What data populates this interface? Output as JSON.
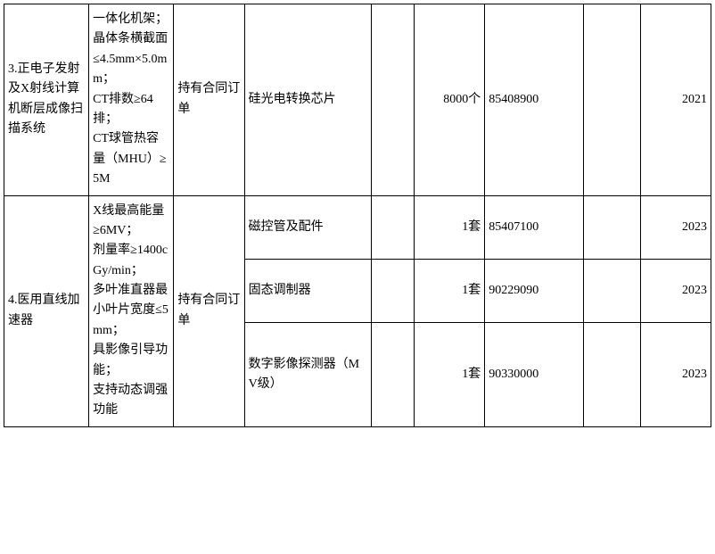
{
  "rows": [
    {
      "name": "3.正电子发射及X射线计算机断层成像扫描系统",
      "spec": "一体化机架；\n晶体条横截面≤4.5mm×5.0mm；\nCT排数≥64排；\nCT球管热容量（MHU）≥5M",
      "condition": "持有合同订单",
      "parts": [
        {
          "partName": "硅光电转换芯片",
          "blank1": "",
          "qty": "8000个",
          "code": "85408900",
          "blank2": "",
          "year": "2021"
        }
      ]
    },
    {
      "name": "4.医用直线加速器",
      "spec": "X线最高能量≥6MV；\n剂量率≥1400cGy/min；\n多叶准直器最小叶片宽度≤5mm；\n具影像引导功能；\n支持动态调强功能",
      "condition": "持有合同订单",
      "parts": [
        {
          "partName": "磁控管及配件",
          "blank1": "",
          "qty": "1套",
          "code": "85407100",
          "blank2": "",
          "year": "2023"
        },
        {
          "partName": "固态调制器",
          "blank1": "",
          "qty": "1套",
          "code": "90229090",
          "blank2": "",
          "year": "2023"
        },
        {
          "partName": "数字影像探测器（MV级）",
          "blank1": "",
          "qty": "1套",
          "code": "90330000",
          "blank2": "",
          "year": "2023"
        }
      ]
    }
  ]
}
